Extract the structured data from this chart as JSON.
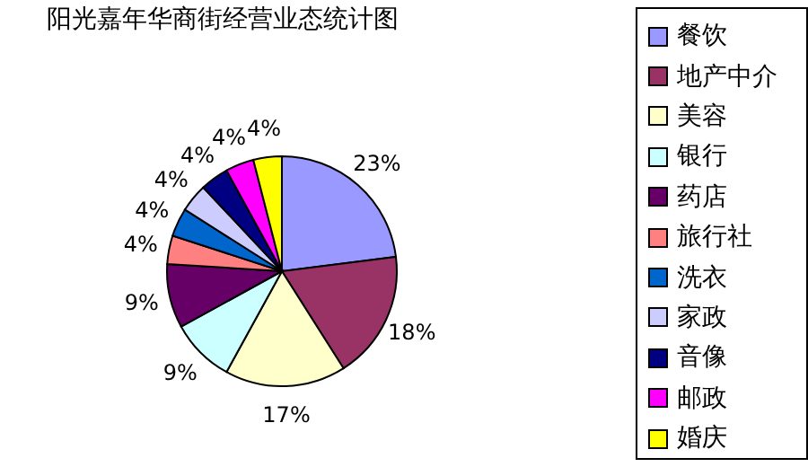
{
  "chart_data": {
    "type": "pie",
    "title": "阳光嘉年华商街经营业态统计图",
    "categories": [
      "餐饮",
      "地产中介",
      "美容",
      "银行",
      "药店",
      "旅行社",
      "洗衣",
      "家政",
      "音像",
      "邮政",
      "婚庆"
    ],
    "values": [
      23,
      18,
      17,
      9,
      9,
      4,
      4,
      4,
      4,
      4,
      4
    ],
    "colors": [
      "#9999ff",
      "#993366",
      "#ffffcc",
      "#ccffff",
      "#660066",
      "#ff8080",
      "#0066cc",
      "#ccccff",
      "#000080",
      "#ff00ff",
      "#ffff00"
    ],
    "value_labels": [
      "23%",
      "18%",
      "17%",
      "9%",
      "9%",
      "4%",
      "4%",
      "4%",
      "4%",
      "4%",
      "4%"
    ],
    "legend": "right"
  }
}
